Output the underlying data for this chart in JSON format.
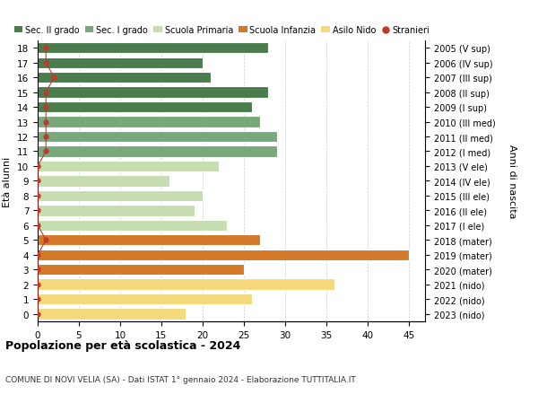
{
  "ages": [
    0,
    1,
    2,
    3,
    4,
    5,
    6,
    7,
    8,
    9,
    10,
    11,
    12,
    13,
    14,
    15,
    16,
    17,
    18
  ],
  "years": [
    "2023 (nido)",
    "2022 (nido)",
    "2021 (nido)",
    "2020 (mater)",
    "2019 (mater)",
    "2018 (mater)",
    "2017 (I ele)",
    "2016 (II ele)",
    "2015 (III ele)",
    "2014 (IV ele)",
    "2013 (V ele)",
    "2012 (I med)",
    "2011 (II med)",
    "2010 (III med)",
    "2009 (I sup)",
    "2008 (II sup)",
    "2007 (III sup)",
    "2006 (IV sup)",
    "2005 (V sup)"
  ],
  "values": [
    18,
    26,
    36,
    25,
    45,
    27,
    23,
    19,
    20,
    16,
    22,
    29,
    29,
    27,
    26,
    28,
    21,
    20,
    28
  ],
  "stranieri": [
    0,
    0,
    0,
    0,
    0,
    1,
    0,
    0,
    0,
    0,
    0,
    1,
    1,
    1,
    1,
    1,
    2,
    1,
    1
  ],
  "colors": {
    "sec2": "#4a7c4e",
    "sec1": "#7aa87d",
    "primaria": "#c5ddb0",
    "infanzia": "#d4782a",
    "nido": "#f5d97a",
    "stranieri": "#c0392b"
  },
  "bar_colors": [
    "#f5d97a",
    "#f5d97a",
    "#f5d97a",
    "#d4782a",
    "#d4782a",
    "#d4782a",
    "#c5ddb0",
    "#c5ddb0",
    "#c5ddb0",
    "#c5ddb0",
    "#c5ddb0",
    "#7aa87d",
    "#7aa87d",
    "#7aa87d",
    "#4a7c4e",
    "#4a7c4e",
    "#4a7c4e",
    "#4a7c4e",
    "#4a7c4e"
  ],
  "title": "Popolazione per età scolastica - 2024",
  "subtitle": "COMUNE DI NOVI VELIA (SA) - Dati ISTAT 1° gennaio 2024 - Elaborazione TUTTITALIA.IT",
  "ylabel": "Età alunni",
  "right_ylabel": "Anni di nascita",
  "xlim": [
    0,
    47
  ],
  "xticks": [
    0,
    5,
    10,
    15,
    20,
    25,
    30,
    35,
    40,
    45
  ],
  "legend_labels": [
    "Sec. II grado",
    "Sec. I grado",
    "Scuola Primaria",
    "Scuola Infanzia",
    "Asilo Nido",
    "Stranieri"
  ],
  "legend_colors": [
    "#4a7c4e",
    "#7aa87d",
    "#c5ddb0",
    "#d4782a",
    "#f5d97a",
    "#c0392b"
  ],
  "grid_color": "#cccccc",
  "bar_height": 0.75
}
